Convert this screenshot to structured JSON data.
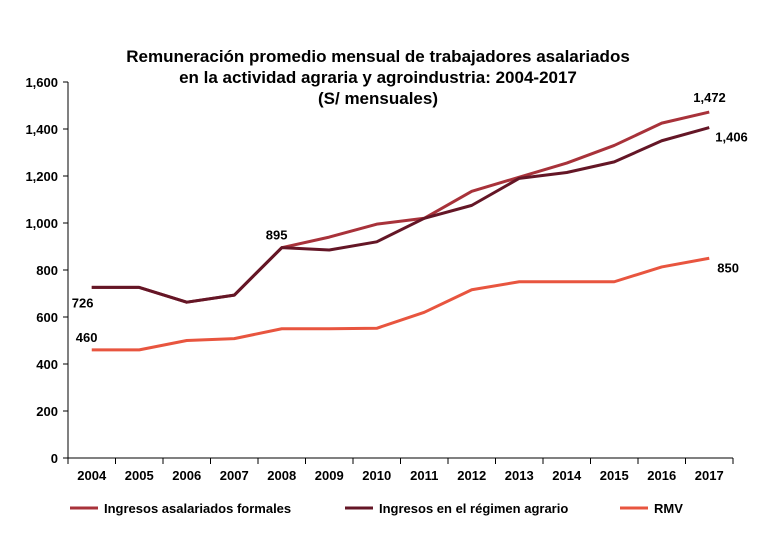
{
  "chart_data": {
    "type": "line",
    "title": [
      "Remuneración promedio mensual de trabajadores asalariados",
      "en la actividad agraria y agroindustria: 2004-2017",
      "(S/ mensuales)"
    ],
    "categories": [
      "2004",
      "2005",
      "2006",
      "2007",
      "2008",
      "2009",
      "2010",
      "2011",
      "2012",
      "2013",
      "2014",
      "2015",
      "2016",
      "2017"
    ],
    "ylim": [
      0,
      1600
    ],
    "yticks": [
      "0",
      "200",
      "400",
      "600",
      "800",
      "1,000",
      "1,200",
      "1,400",
      "1,600"
    ],
    "grid": false,
    "legend": "bottom",
    "series": [
      {
        "name": "Ingresos asalariados formales",
        "color": "#a8323a",
        "values": [
          726,
          726,
          663,
          693,
          895,
          940,
          995,
          1020,
          1135,
          1195,
          1255,
          1330,
          1425,
          1472
        ]
      },
      {
        "name": "Ingresos en el régimen agrario",
        "color": "#641626",
        "values": [
          726,
          726,
          663,
          693,
          895,
          885,
          920,
          1020,
          1075,
          1190,
          1215,
          1260,
          1350,
          1406
        ]
      },
      {
        "name": "RMV",
        "color": "#e8553f",
        "values": [
          460,
          460,
          500,
          508,
          550,
          550,
          552,
          620,
          716,
          750,
          750,
          750,
          813,
          850
        ]
      }
    ],
    "data_labels": [
      {
        "series": 0,
        "index": 0,
        "text": "726"
      },
      {
        "series": 2,
        "index": 0,
        "text": "460"
      },
      {
        "series": 0,
        "index": 4,
        "text": "895"
      },
      {
        "series": 0,
        "index": 13,
        "text": "1,472"
      },
      {
        "series": 1,
        "index": 13,
        "text": "1,406"
      },
      {
        "series": 2,
        "index": 13,
        "text": "850"
      }
    ]
  }
}
